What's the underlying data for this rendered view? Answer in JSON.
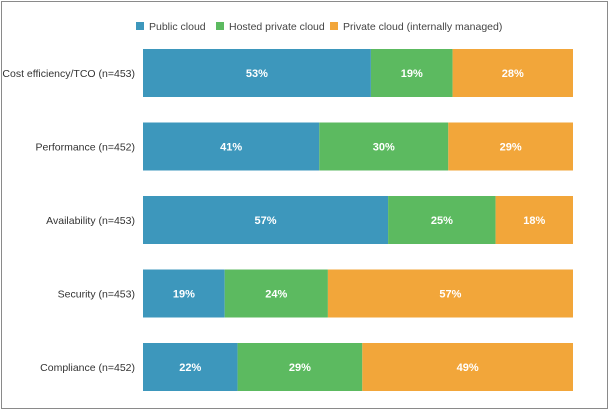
{
  "chart_data": {
    "type": "bar",
    "orientation": "horizontal",
    "stacked": true,
    "percent": true,
    "title": "",
    "xlabel": "",
    "ylabel": "",
    "xlim": [
      0,
      100
    ],
    "grid": false,
    "legend_position": "top",
    "categories": [
      "Cost efficiency/TCO (n=453)",
      "Performance (n=452)",
      "Availability (n=453)",
      "Security (n=453)",
      "Compliance (n=452)"
    ],
    "series": [
      {
        "name": "Public cloud",
        "color": "#3d97bc",
        "values": [
          53,
          41,
          57,
          19,
          22
        ]
      },
      {
        "name": "Hosted private cloud",
        "color": "#5cba60",
        "values": [
          19,
          30,
          25,
          24,
          29
        ]
      },
      {
        "name": "Private cloud (internally managed)",
        "color": "#f2a63a",
        "values": [
          28,
          29,
          18,
          57,
          49
        ]
      }
    ],
    "value_suffix": "%"
  }
}
